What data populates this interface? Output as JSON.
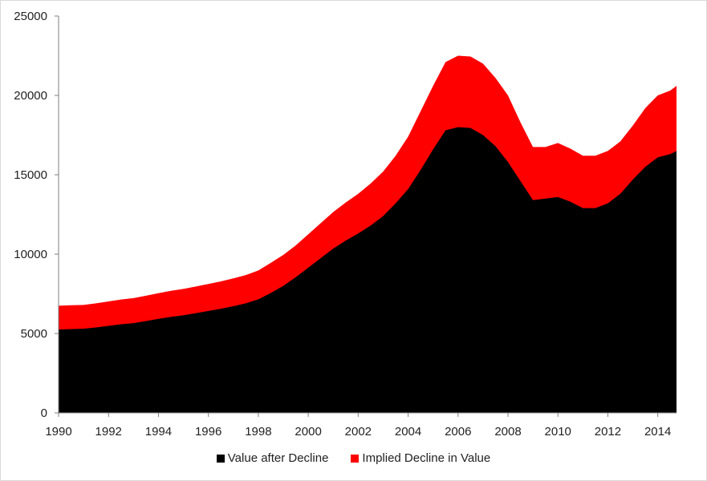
{
  "chart_data": {
    "type": "area",
    "stacked": true,
    "title": "",
    "xlabel": "",
    "ylabel": "",
    "xlim": [
      1990,
      2014.75
    ],
    "ylim": [
      0,
      25000
    ],
    "x_ticks": [
      "1990",
      "1992",
      "1994",
      "1996",
      "1998",
      "2000",
      "2002",
      "2004",
      "2006",
      "2008",
      "2010",
      "2012",
      "2014"
    ],
    "y_ticks": [
      "0",
      "5000",
      "10000",
      "15000",
      "20000",
      "25000"
    ],
    "grid": false,
    "legend_position": "bottom",
    "x": [
      1990,
      1990.5,
      1991,
      1991.5,
      1992,
      1992.5,
      1993,
      1993.5,
      1994,
      1994.5,
      1995,
      1995.5,
      1996,
      1996.5,
      1997,
      1997.5,
      1998,
      1998.5,
      1999,
      1999.5,
      2000,
      2000.5,
      2001,
      2001.5,
      2002,
      2002.5,
      2003,
      2003.5,
      2004,
      2004.5,
      2005,
      2005.5,
      2006,
      2006.5,
      2007,
      2007.5,
      2008,
      2008.5,
      2009,
      2009.5,
      2010,
      2010.5,
      2011,
      2011.5,
      2012,
      2012.5,
      2013,
      2013.5,
      2014,
      2014.5,
      2014.75
    ],
    "series": [
      {
        "name": "Value after Decline",
        "color": "#000000",
        "values": [
          5250,
          5280,
          5300,
          5380,
          5480,
          5580,
          5650,
          5780,
          5920,
          6050,
          6150,
          6280,
          6420,
          6560,
          6720,
          6900,
          7150,
          7550,
          8000,
          8550,
          9150,
          9750,
          10350,
          10850,
          11300,
          11800,
          12400,
          13200,
          14100,
          15300,
          16600,
          17800,
          18000,
          17950,
          17500,
          16800,
          15800,
          14600,
          13400,
          13500,
          13600,
          13300,
          12900,
          12900,
          13200,
          13800,
          14700,
          15500,
          16100,
          16300,
          16500
        ]
      },
      {
        "name": "Implied Decline in Value",
        "color": "#ff0000",
        "values": [
          1500,
          1500,
          1500,
          1520,
          1540,
          1560,
          1580,
          1600,
          1620,
          1640,
          1660,
          1680,
          1700,
          1720,
          1750,
          1780,
          1820,
          1900,
          1950,
          2000,
          2100,
          2200,
          2300,
          2400,
          2500,
          2650,
          2800,
          3000,
          3300,
          3700,
          4000,
          4300,
          4500,
          4500,
          4500,
          4300,
          4200,
          3700,
          3350,
          3250,
          3400,
          3350,
          3300,
          3300,
          3300,
          3300,
          3400,
          3700,
          3900,
          4000,
          4100
        ]
      }
    ]
  }
}
